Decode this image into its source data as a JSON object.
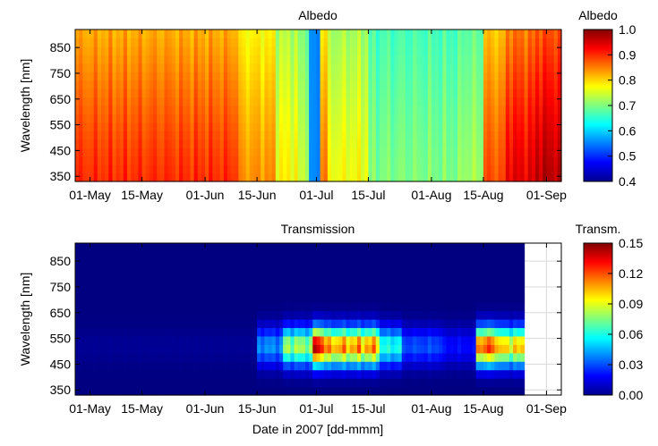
{
  "chart_data": [
    {
      "type": "heatmap",
      "title": "Albedo",
      "xlabel": "",
      "ylabel": "Wavelength [nm]",
      "x_ticks": [
        "01-May",
        "15-May",
        "01-Jun",
        "15-Jun",
        "01-Jul",
        "15-Jul",
        "01-Aug",
        "15-Aug",
        "01-Sep"
      ],
      "x_tick_days": [
        0,
        14,
        31,
        45,
        61,
        75,
        92,
        106,
        123
      ],
      "x_range_days": [
        -4,
        127
      ],
      "y_ticks": [
        350,
        450,
        550,
        650,
        750,
        850
      ],
      "ylim": [
        330,
        920
      ],
      "colorbar": {
        "label": "Albedo",
        "ticks": [
          "1.0",
          "0.9",
          "0.8",
          "0.7",
          "0.6",
          "0.5",
          "0.4"
        ],
        "range": [
          0.4,
          1.0
        ]
      },
      "colormap": "jet",
      "segments": [
        {
          "from": -4,
          "to": 40,
          "value": 0.9
        },
        {
          "from": 40,
          "to": 50,
          "value": 0.84
        },
        {
          "from": 50,
          "to": 56,
          "value": 0.78
        },
        {
          "from": 56,
          "to": 59,
          "value": 0.74
        },
        {
          "from": 59,
          "to": 62,
          "value": 0.55
        },
        {
          "from": 62,
          "to": 64,
          "value": 0.86
        },
        {
          "from": 64,
          "to": 75,
          "value": 0.77
        },
        {
          "from": 75,
          "to": 100,
          "value": 0.7
        },
        {
          "from": 100,
          "to": 106,
          "value": 0.72
        },
        {
          "from": 106,
          "to": 112,
          "value": 0.88
        },
        {
          "from": 112,
          "to": 120,
          "value": 0.94
        },
        {
          "from": 120,
          "to": 127,
          "value": 0.97
        }
      ]
    },
    {
      "type": "heatmap",
      "title": "Transmission",
      "xlabel": "Date in 2007 [dd-mmm]",
      "ylabel": "Wavelength [nm]",
      "x_ticks": [
        "01-May",
        "15-May",
        "01-Jun",
        "15-Jun",
        "01-Jul",
        "15-Jul",
        "01-Aug",
        "15-Aug",
        "01-Sep"
      ],
      "x_tick_days": [
        0,
        14,
        31,
        45,
        61,
        75,
        92,
        106,
        123
      ],
      "x_range_days": [
        -4,
        127
      ],
      "data_end_day": 117,
      "y_ticks": [
        350,
        450,
        550,
        650,
        750,
        850
      ],
      "ylim": [
        330,
        920
      ],
      "peak_wavelength_nm": 520,
      "colorbar": {
        "label": "Transm.",
        "ticks": [
          "0.15",
          "0.12",
          "0.09",
          "0.06",
          "0.03",
          "0.00"
        ],
        "range": [
          0.0,
          0.15
        ]
      },
      "colormap": "jet",
      "segments": [
        {
          "from": -4,
          "to": 45,
          "value": 0.003
        },
        {
          "from": 45,
          "to": 52,
          "value": 0.04
        },
        {
          "from": 52,
          "to": 60,
          "value": 0.08
        },
        {
          "from": 60,
          "to": 63,
          "value": 0.14
        },
        {
          "from": 63,
          "to": 78,
          "value": 0.11
        },
        {
          "from": 78,
          "to": 84,
          "value": 0.06
        },
        {
          "from": 84,
          "to": 95,
          "value": 0.03
        },
        {
          "from": 95,
          "to": 104,
          "value": 0.02
        },
        {
          "from": 104,
          "to": 110,
          "value": 0.12
        },
        {
          "from": 110,
          "to": 117,
          "value": 0.1
        }
      ]
    }
  ]
}
